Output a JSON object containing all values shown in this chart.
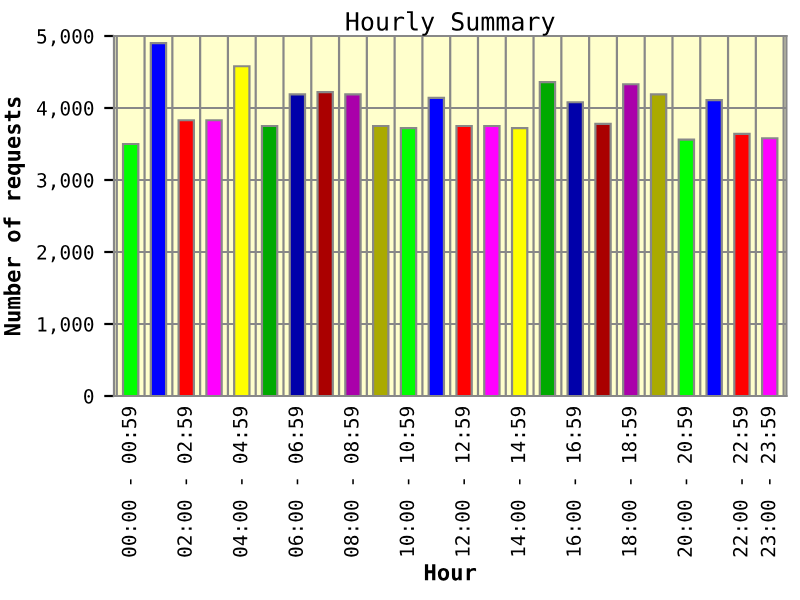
{
  "chart_data": {
    "type": "bar",
    "title": "Hourly Summary",
    "xlabel": "Hour",
    "ylabel": "Number of requests",
    "categories": [
      "00:00 - 00:59",
      null,
      "02:00 - 02:59",
      null,
      "04:00 - 04:59",
      null,
      "06:00 - 06:59",
      null,
      "08:00 - 08:59",
      null,
      "10:00 - 10:59",
      null,
      "12:00 - 12:59",
      null,
      "14:00 - 14:59",
      null,
      "16:00 - 16:59",
      null,
      "18:00 - 18:59",
      null,
      "20:00 - 20:59",
      null,
      "22:00 - 22:59",
      "23:00 - 23:59"
    ],
    "values": [
      3500,
      4900,
      3830,
      3830,
      4580,
      3750,
      4190,
      4220,
      4190,
      3750,
      3720,
      4140,
      3750,
      3750,
      3720,
      4360,
      4080,
      3780,
      4330,
      4190,
      3560,
      4110,
      3640,
      3580
    ],
    "colors": [
      "#00ff00",
      "#0000ff",
      "#ff0000",
      "#ff00ff",
      "#ffff00",
      "#00aa00",
      "#0000aa",
      "#aa0000",
      "#aa00aa",
      "#aaaa00",
      "#00ff00",
      "#0000ff",
      "#ff0000",
      "#ff00ff",
      "#ffff00",
      "#00aa00",
      "#0000aa",
      "#aa0000",
      "#aa00aa",
      "#aaaa00",
      "#00ff00",
      "#0000ff",
      "#ff0000",
      "#ff00ff"
    ],
    "ylim": [
      0,
      5000
    ],
    "yticks": [
      {
        "value": 0,
        "label": "0"
      },
      {
        "value": 1000,
        "label": "1,000"
      },
      {
        "value": 2000,
        "label": "2,000"
      },
      {
        "value": 3000,
        "label": "3,000"
      },
      {
        "value": 4000,
        "label": "4,000"
      },
      {
        "value": 5000,
        "label": "5,000"
      }
    ],
    "grid": true
  }
}
